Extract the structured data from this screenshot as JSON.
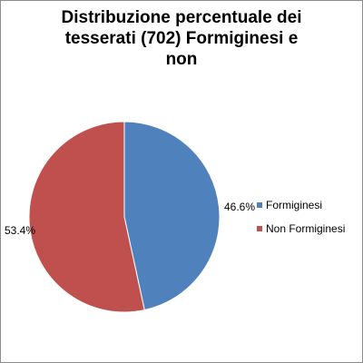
{
  "chart_data": {
    "type": "pie",
    "title_lines": [
      "Distribuzione percentuale dei",
      "tesserati (702) Formiginesi e",
      "non"
    ],
    "categories": [
      "Formiginesi",
      "Non Formiginesi"
    ],
    "values": [
      46.6,
      53.4
    ],
    "data_labels": [
      "46.6%",
      "53.4%"
    ],
    "colors": [
      "#4f81bd",
      "#c0504d"
    ],
    "legend_position": "right"
  }
}
